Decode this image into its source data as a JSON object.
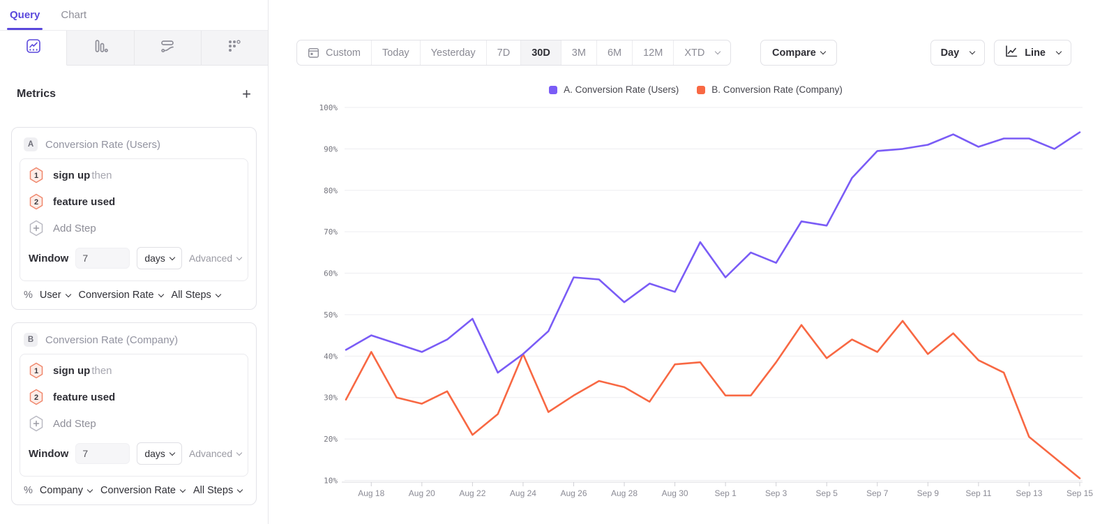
{
  "sidebar": {
    "tabs": [
      {
        "label": "Query",
        "active": true
      },
      {
        "label": "Chart",
        "active": false
      }
    ],
    "icon_tabs": {
      "items": [
        "insights",
        "funnels",
        "flows",
        "retention"
      ],
      "active": "insights"
    },
    "metrics_title": "Metrics",
    "icons": {
      "add_metric": "+",
      "percent": "%"
    },
    "cards": [
      {
        "badge": "A",
        "title": "Conversion Rate (Users)",
        "steps": [
          {
            "num": "1",
            "label": "sign up",
            "suffix": "then"
          },
          {
            "num": "2",
            "label": "feature used",
            "suffix": ""
          }
        ],
        "add_step_label": "Add Step",
        "window_label": "Window",
        "window_value": "7",
        "window_unit": "days",
        "advanced_label": "Advanced",
        "measure": {
          "prefix": "%",
          "entity": "User",
          "metric": "Conversion Rate",
          "steps_scope": "All Steps"
        }
      },
      {
        "badge": "B",
        "title": "Conversion Rate (Company)",
        "steps": [
          {
            "num": "1",
            "label": "sign up",
            "suffix": "then"
          },
          {
            "num": "2",
            "label": "feature used",
            "suffix": ""
          }
        ],
        "add_step_label": "Add Step",
        "window_label": "Window",
        "window_value": "7",
        "window_unit": "days",
        "advanced_label": "Advanced",
        "measure": {
          "prefix": "%",
          "entity": "Company",
          "metric": "Conversion Rate",
          "steps_scope": "All Steps"
        }
      }
    ]
  },
  "toolbar": {
    "ranges": [
      "Custom",
      "Today",
      "Yesterday",
      "7D",
      "30D",
      "3M",
      "6M",
      "12M",
      "XTD"
    ],
    "active_range": "30D",
    "compare_label": "Compare",
    "granularity_label": "Day",
    "chart_type_label": "Line"
  },
  "legend": [
    {
      "label": "A. Conversion Rate (Users)",
      "color": "#7A5CF6"
    },
    {
      "label": "B. Conversion Rate (Company)",
      "color": "#F86843"
    }
  ],
  "chart_data": {
    "type": "line",
    "x": [
      "Aug 17",
      "Aug 18",
      "Aug 19",
      "Aug 20",
      "Aug 21",
      "Aug 22",
      "Aug 23",
      "Aug 24",
      "Aug 25",
      "Aug 26",
      "Aug 27",
      "Aug 28",
      "Aug 29",
      "Aug 30",
      "Aug 31",
      "Sep 1",
      "Sep 2",
      "Sep 3",
      "Sep 4",
      "Sep 5",
      "Sep 6",
      "Sep 7",
      "Sep 8",
      "Sep 9",
      "Sep 10",
      "Sep 11",
      "Sep 12",
      "Sep 13",
      "Sep 14",
      "Sep 15"
    ],
    "x_tick_labels": [
      "Aug 18",
      "Aug 20",
      "Aug 22",
      "Aug 24",
      "Aug 26",
      "Aug 28",
      "Aug 30",
      "Sep 1",
      "Sep 3",
      "Sep 5",
      "Sep 7",
      "Sep 9",
      "Sep 11",
      "Sep 13",
      "Sep 15"
    ],
    "series": [
      {
        "name": "A. Conversion Rate (Users)",
        "color": "#7A5CF6",
        "values": [
          41.5,
          45,
          43,
          41,
          44,
          49,
          36,
          40.5,
          46,
          59,
          58.5,
          53,
          57.5,
          55.5,
          67.5,
          59,
          65,
          62.5,
          72.5,
          71.5,
          83,
          89.5,
          90,
          91,
          93.5,
          90.5,
          92.5,
          92.5,
          90,
          94
        ]
      },
      {
        "name": "B. Conversion Rate (Company)",
        "color": "#F86843",
        "values": [
          29.5,
          41,
          30,
          28.5,
          31.5,
          21,
          26,
          40.5,
          26.5,
          30.5,
          34,
          32.5,
          29,
          38,
          38.5,
          30.5,
          30.5,
          38.5,
          47.5,
          39.5,
          44,
          41,
          48.5,
          40.5,
          45.5,
          39,
          36,
          20.5,
          15.5,
          10.5
        ]
      }
    ],
    "unit": "%",
    "ylim": [
      10,
      100
    ],
    "yticks": [
      100,
      90,
      80,
      70,
      60,
      50,
      40,
      30,
      20,
      10
    ],
    "grid": true,
    "legend_position": "top"
  }
}
